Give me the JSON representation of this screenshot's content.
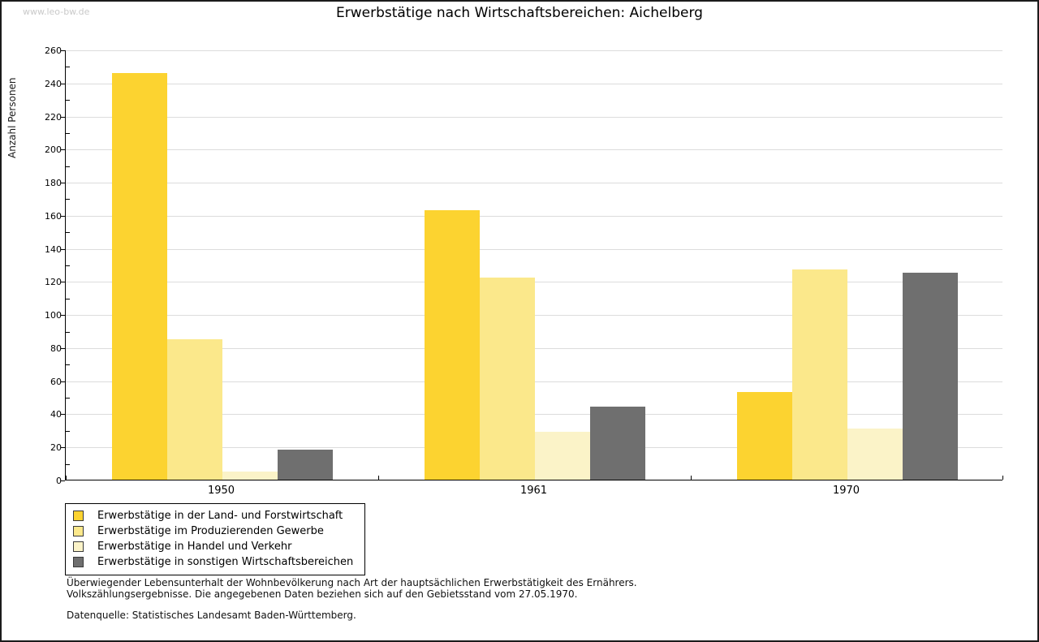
{
  "watermark": "www.leo-bw.de",
  "title": "Erwerbstätige nach Wirtschaftsbereichen: Aichelberg",
  "chart_data": {
    "type": "bar",
    "title": "Erwerbstätige nach Wirtschaftsbereichen: Aichelberg",
    "xlabel": "",
    "ylabel": "Anzahl Personen",
    "categories": [
      "1950",
      "1961",
      "1970"
    ],
    "series": [
      {
        "name": "Erwerbstätige in der Land- und Forstwirtschaft",
        "color": "#fcd330",
        "values": [
          246,
          163,
          53
        ]
      },
      {
        "name": "Erwerbstätige im Produzierenden Gewerbe",
        "color": "#fbe88b",
        "values": [
          85,
          122,
          127
        ]
      },
      {
        "name": "Erwerbstätige in Handel und Verkehr",
        "color": "#fbf3c8",
        "values": [
          5,
          29,
          31
        ]
      },
      {
        "name": "Erwerbstätige in sonstigen Wirtschaftsbereichen",
        "color": "#6f6f6f",
        "values": [
          18,
          44,
          125
        ]
      }
    ],
    "ylim": [
      0,
      260
    ],
    "yticks": [
      0,
      20,
      40,
      60,
      80,
      100,
      120,
      140,
      160,
      180,
      200,
      220,
      240,
      260
    ],
    "ytick_minor_step": 10,
    "grid": true,
    "gridline_color": "#dcdcdc",
    "legend_position": "bottom-left"
  },
  "footnotes": {
    "line1": "Überwiegender Lebensunterhalt der Wohnbevölkerung nach Art der hauptsächlichen Erwerbstätigkeit des Ernährers.",
    "line2": "Volkszählungsergebnisse. Die angegebenen Daten beziehen sich auf den Gebietsstand vom 27.05.1970.",
    "source": "Datenquelle: Statistisches Landesamt Baden-Württemberg."
  }
}
